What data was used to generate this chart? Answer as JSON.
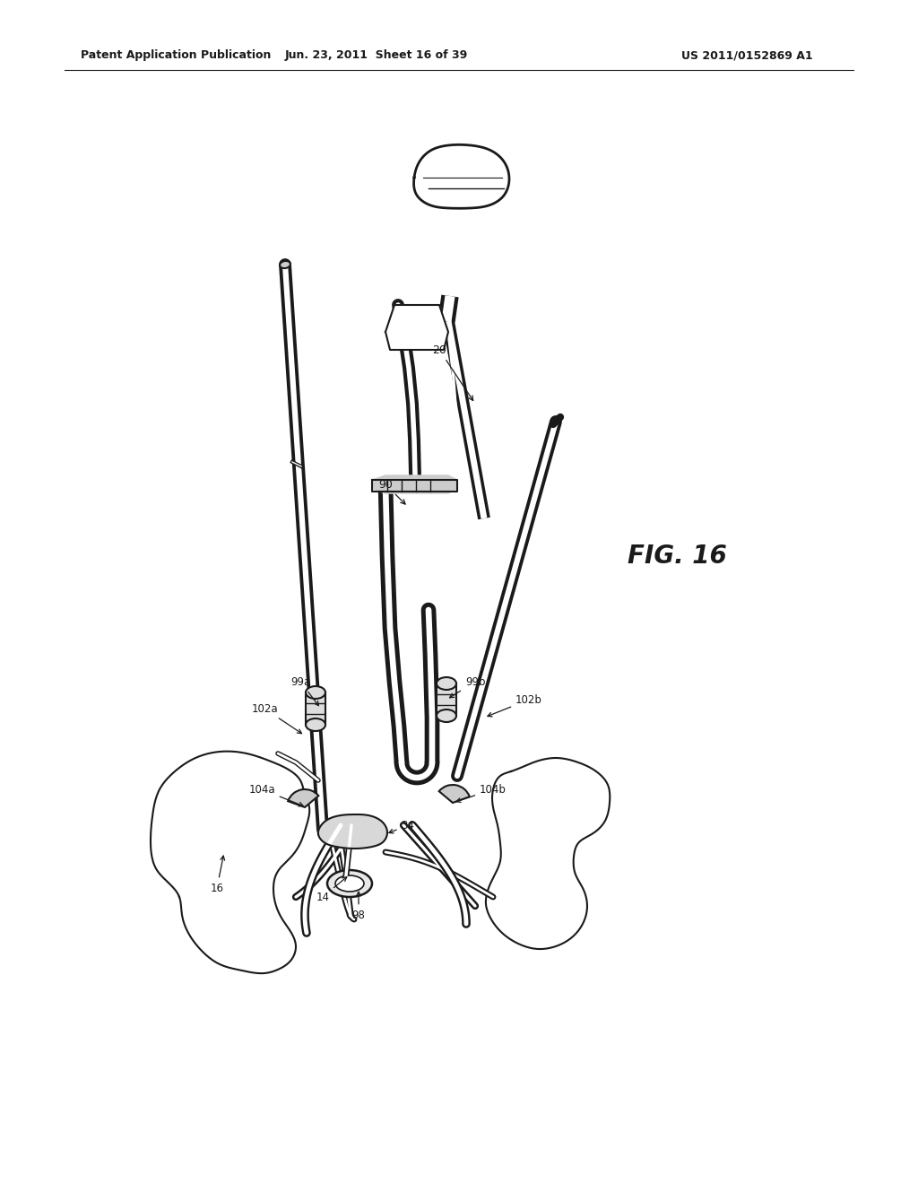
{
  "bg_color": "#ffffff",
  "line_color": "#1a1a1a",
  "header_left": "Patent Application Publication",
  "header_mid": "Jun. 23, 2011  Sheet 16 of 39",
  "header_right": "US 2011/0152869 A1",
  "fig_label": "FIG. 16"
}
